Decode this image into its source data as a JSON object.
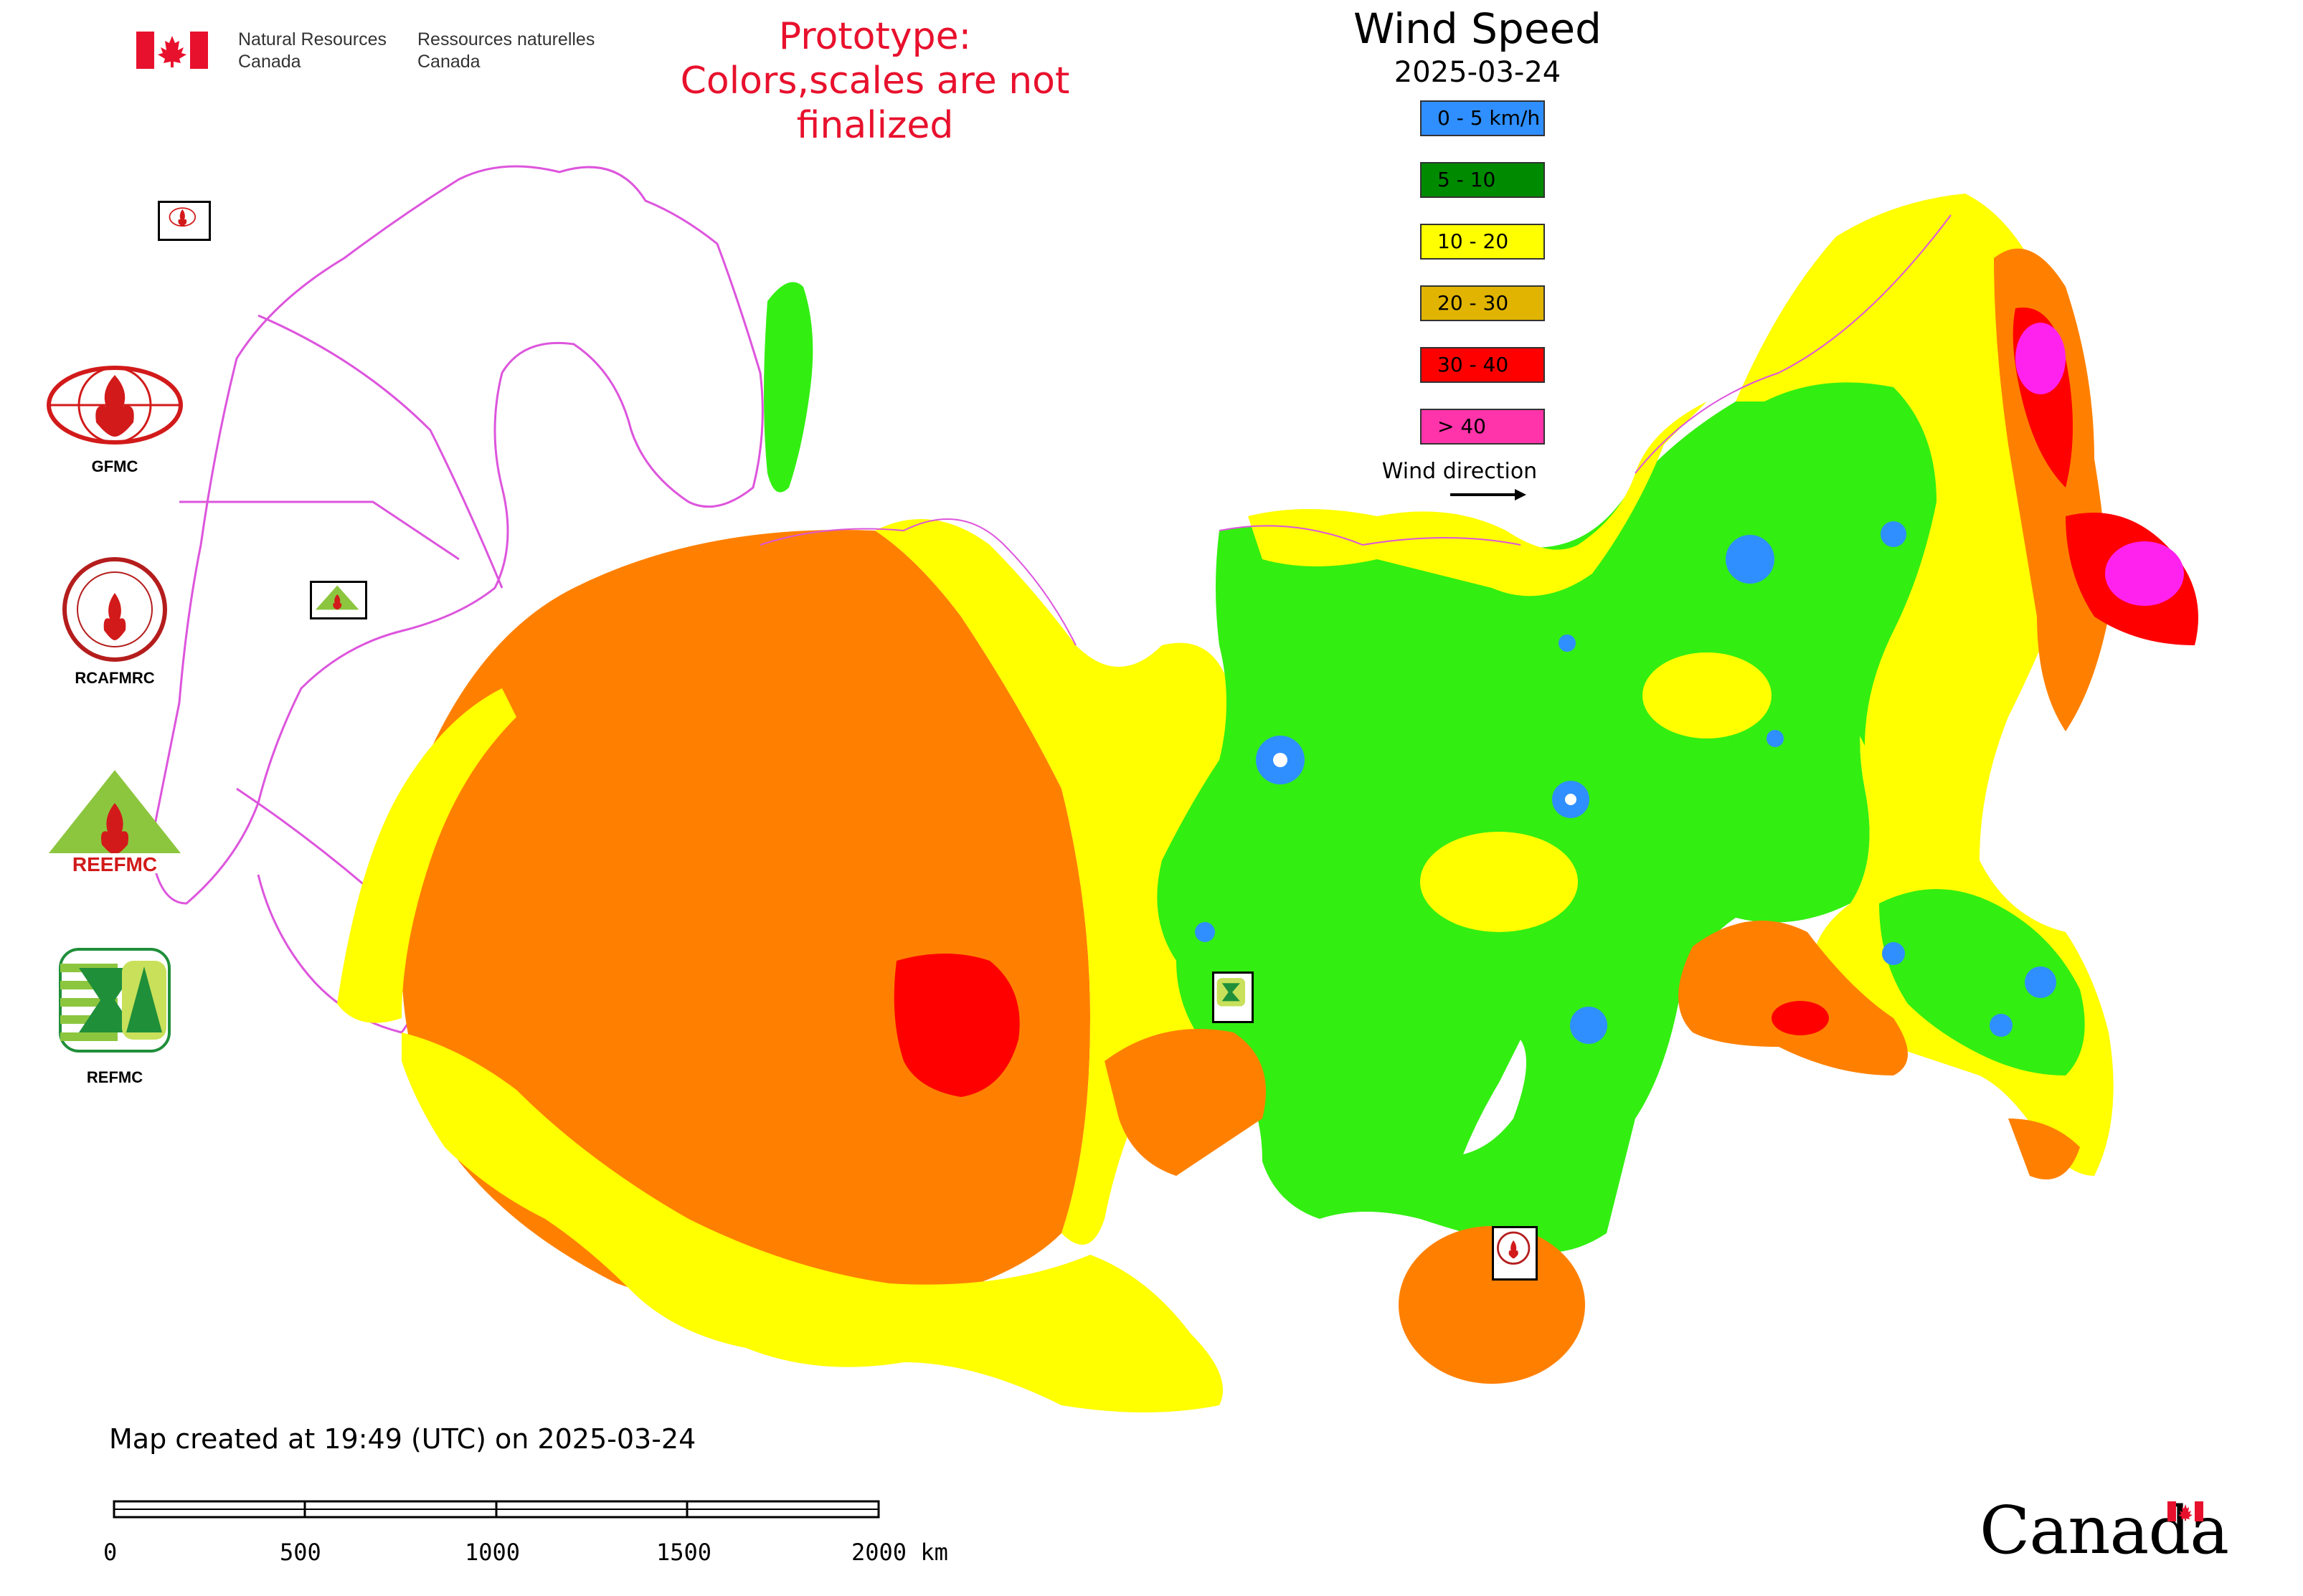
{
  "header": {
    "department_en_line1": "Natural Resources",
    "department_en_line2": "Canada",
    "department_fr_line1": "Ressources naturelles",
    "department_fr_line2": "Canada"
  },
  "notice": {
    "line1": "Prototype:",
    "line2": "Colors,scales are not finalized",
    "color": "#e8112d"
  },
  "legend": {
    "title": "Wind Speed",
    "date": "2025-03-24",
    "classes": [
      {
        "label": "0 - 5 km/h",
        "color": "#2f8fff"
      },
      {
        "label": "5 - 10",
        "color": "#008a00"
      },
      {
        "label": "10 - 20",
        "color": "#ffff00"
      },
      {
        "label": "20 - 30",
        "color": "#e0b400"
      },
      {
        "label": "30 - 40",
        "color": "#ff0000"
      },
      {
        "label": "> 40",
        "color": "#ff33aa"
      }
    ],
    "wind_direction_label": "Wind direction"
  },
  "agencies": [
    {
      "name": "GFMC"
    },
    {
      "name": "RCAFMRC"
    },
    {
      "name": "REEFMC"
    },
    {
      "name": "REFMC"
    }
  ],
  "map_colors": {
    "orange": "#ff8000",
    "yellow": "#ffff00",
    "green": "#33ee11",
    "red": "#ff0000",
    "magenta": "#ff22ee",
    "blue": "#2f8fff",
    "border": "#dd55dd"
  },
  "footer": {
    "created": "Map created at 19:49 (UTC) on 2025-03-24",
    "scale_ticks": [
      "0",
      "500",
      "1000",
      "1500",
      "2000 km"
    ],
    "wordmark": "Canada"
  }
}
